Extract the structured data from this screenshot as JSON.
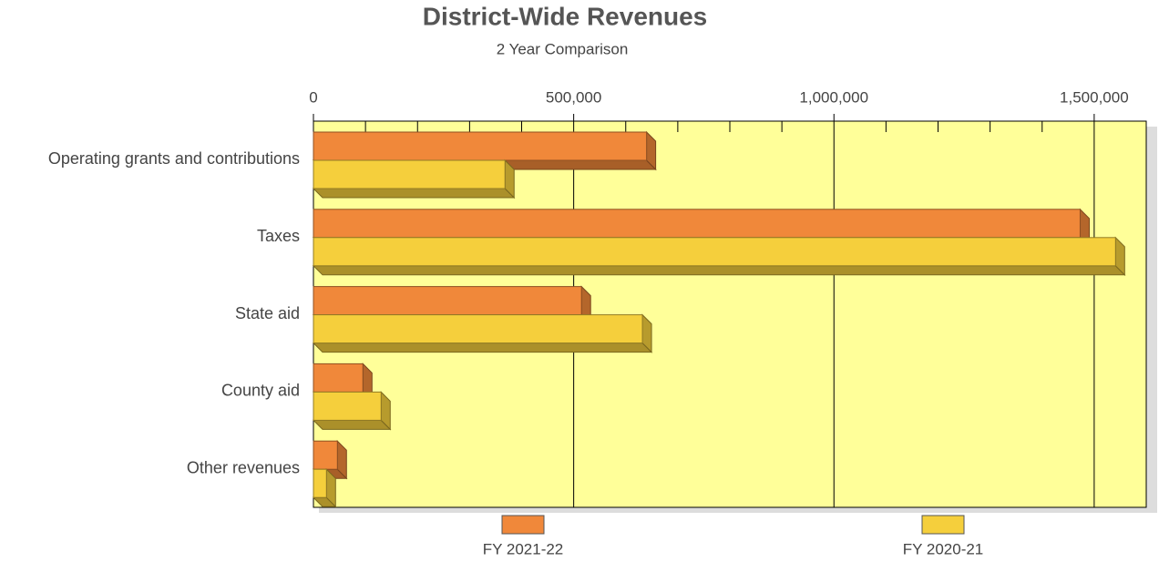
{
  "chart_data": {
    "type": "bar",
    "orientation": "horizontal",
    "title": "District-Wide Revenues",
    "subtitle": "2 Year Comparison",
    "categories": [
      "Operating grants and contributions",
      "Taxes",
      "State aid",
      "County aid",
      "Other revenues"
    ],
    "series": [
      {
        "name": "FY 2021-22",
        "color": "#f0883a",
        "values": [
          640000,
          1473000,
          515000,
          95000,
          46000
        ]
      },
      {
        "name": "FY 2020-21",
        "color": "#f5cf3c",
        "values": [
          368000,
          1541000,
          632000,
          130000,
          25000
        ]
      }
    ],
    "xlim": [
      0,
      1600000
    ],
    "xticks": [
      0,
      {
        "value": 500000,
        "label": "500,000"
      },
      {
        "value": 1000000,
        "label": "1,000,000"
      },
      {
        "value": 1500000,
        "label": "1,500,000"
      }
    ],
    "xminorticks": [
      100000,
      200000,
      300000,
      400000,
      600000,
      700000,
      800000,
      900000,
      1100000,
      1200000,
      1300000,
      1400000
    ],
    "grid": true,
    "background": "#ffff99",
    "legend": "bottom"
  }
}
